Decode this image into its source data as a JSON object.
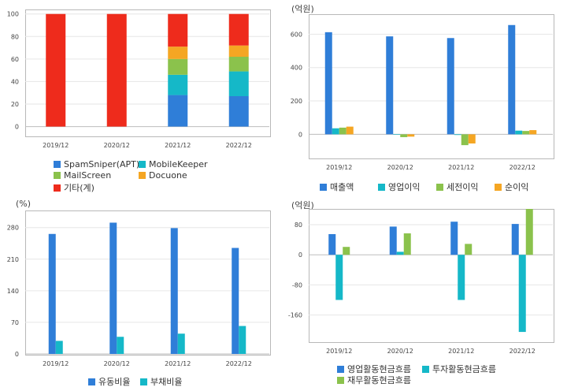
{
  "chart_data": [
    {
      "type": "bar",
      "stacked": true,
      "unit_label": "",
      "categories": [
        "2019/12",
        "2020/12",
        "2021/12",
        "2022/12"
      ],
      "ylim": [
        -8,
        104
      ],
      "yticks": [
        0,
        20,
        40,
        60,
        80,
        100
      ],
      "grid": true,
      "legend_position": "bottom",
      "series": [
        {
          "name": "SpamSniper(APT)",
          "color": "#2f7ed8",
          "values": [
            0,
            0,
            28,
            27
          ]
        },
        {
          "name": "MobileKeeper",
          "color": "#15b8c8",
          "values": [
            0,
            0,
            18,
            22
          ]
        },
        {
          "name": "MailScreen",
          "color": "#8bc24c",
          "values": [
            0,
            0,
            14,
            13
          ]
        },
        {
          "name": "Docuone",
          "color": "#f5a623",
          "values": [
            0,
            0,
            11,
            10
          ]
        },
        {
          "name": "기타(계)",
          "color": "#ee2b1c",
          "values": [
            100,
            100,
            29,
            28
          ]
        }
      ]
    },
    {
      "type": "bar",
      "unit_label": "(억원)",
      "categories": [
        "2019/12",
        "2020/12",
        "2021/12",
        "2022/12"
      ],
      "ylim": [
        -140,
        720
      ],
      "yticks": [
        0,
        200,
        400,
        600
      ],
      "grid": true,
      "legend_position": "bottom",
      "series": [
        {
          "name": "매출액",
          "color": "#2f7ed8",
          "values": [
            612,
            587,
            577,
            655
          ]
        },
        {
          "name": "영업이익",
          "color": "#15b8c8",
          "values": [
            36,
            -3,
            -4,
            22
          ]
        },
        {
          "name": "세전이익",
          "color": "#8bc24c",
          "values": [
            40,
            -17,
            -65,
            20
          ]
        },
        {
          "name": "순이익",
          "color": "#f5a623",
          "values": [
            46,
            -14,
            -55,
            25
          ]
        }
      ]
    },
    {
      "type": "bar",
      "unit_label": "(%)",
      "categories": [
        "2019/12",
        "2020/12",
        "2021/12",
        "2022/12"
      ],
      "ylim": [
        0,
        318
      ],
      "yticks": [
        0,
        70,
        140,
        210,
        280
      ],
      "grid": true,
      "legend_position": "bottom",
      "series": [
        {
          "name": "유동비율",
          "color": "#2f7ed8",
          "values": [
            266,
            291,
            279,
            235
          ]
        },
        {
          "name": "부채비율",
          "color": "#15b8c8",
          "values": [
            29,
            38,
            45,
            62
          ]
        }
      ]
    },
    {
      "type": "bar",
      "unit_label": "(억원)",
      "categories": [
        "2019/12",
        "2020/12",
        "2021/12",
        "2022/12"
      ],
      "ylim": [
        -230,
        122
      ],
      "yticks": [
        -160,
        -80,
        0,
        80
      ],
      "grid": true,
      "legend_position": "bottom",
      "series": [
        {
          "name": "영업활동현금흐름",
          "color": "#2f7ed8",
          "values": [
            55,
            75,
            88,
            82
          ]
        },
        {
          "name": "투자활동현금흐름",
          "color": "#15b8c8",
          "values": [
            -120,
            8,
            -120,
            -205
          ]
        },
        {
          "name": "재무활동현금흐름",
          "color": "#8bc24c",
          "values": [
            21,
            57,
            29,
            122
          ]
        }
      ]
    }
  ]
}
